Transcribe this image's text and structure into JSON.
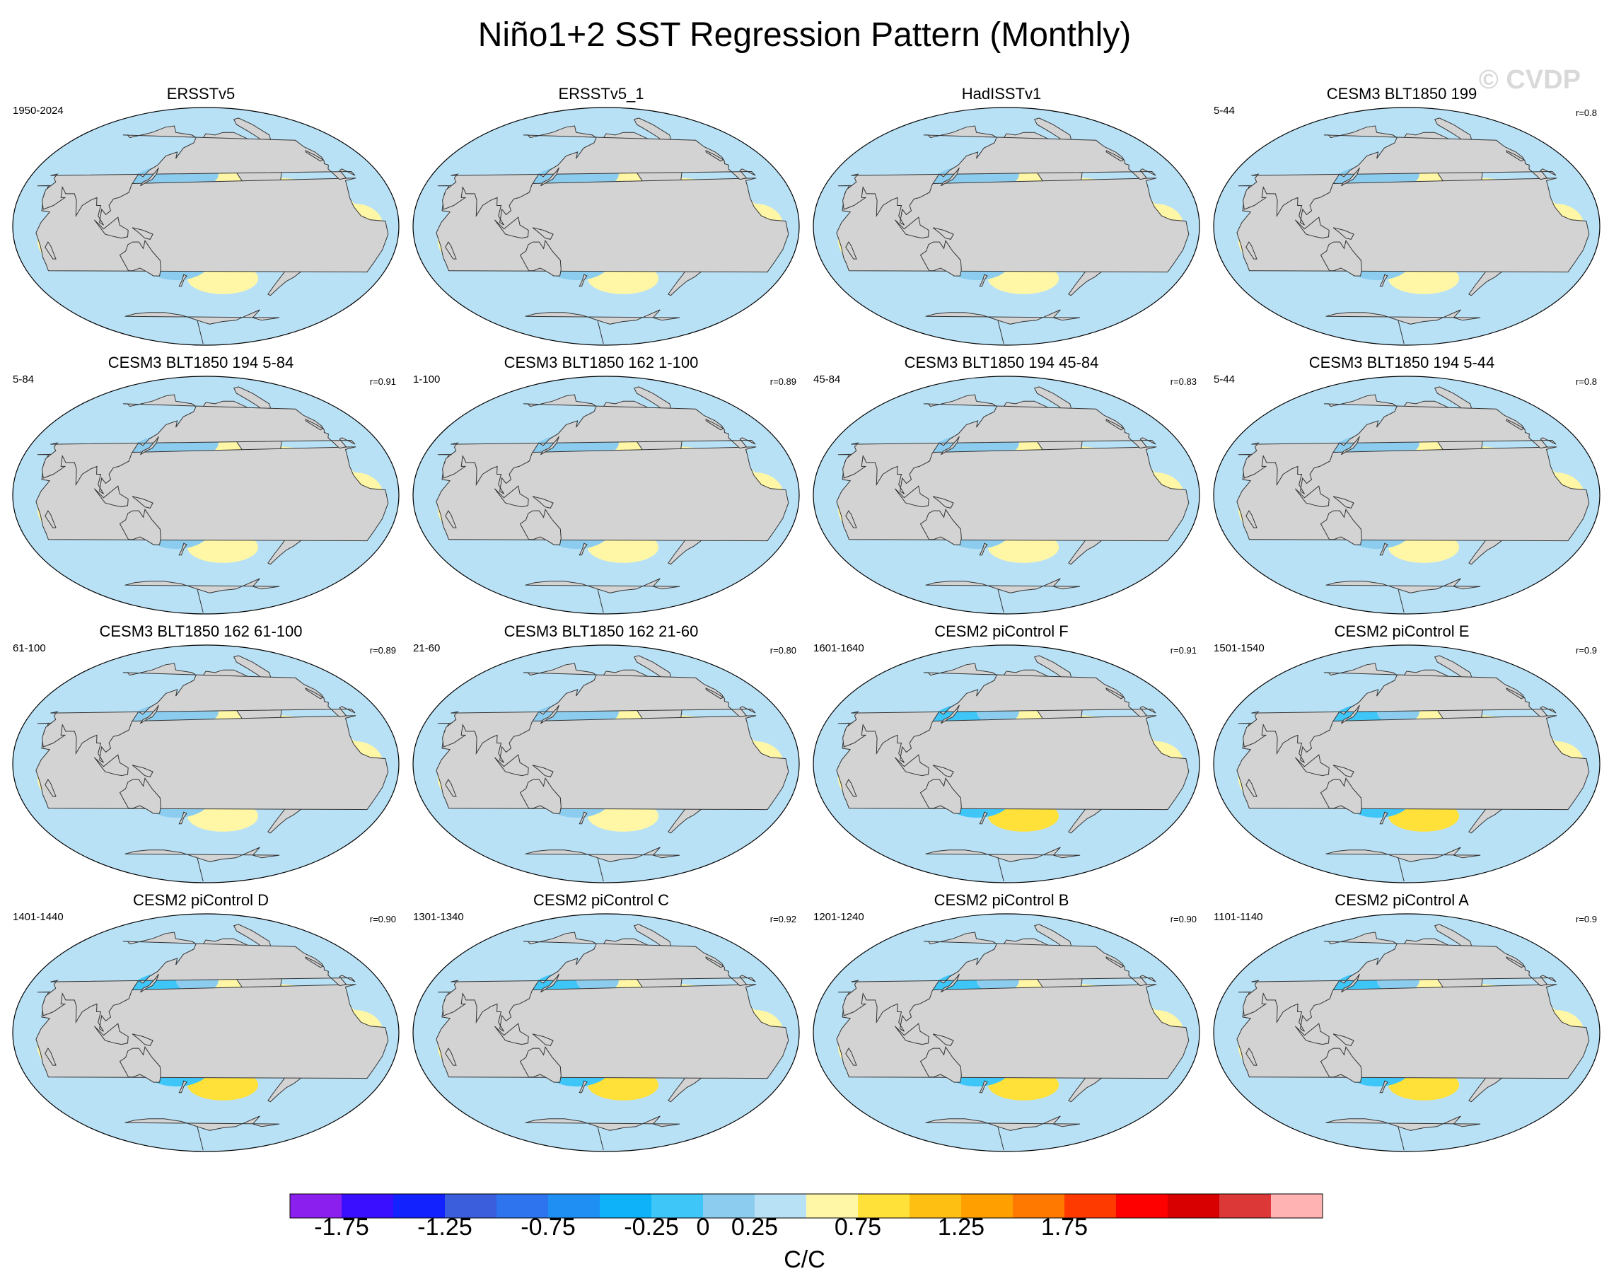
{
  "title": "Niño1+2 SST Regression Pattern (Monthly)",
  "watermark": "© CVDP",
  "colors": {
    "land": "#d3d3d3",
    "coast": "#333333",
    "ocean_neutral": "#b9e1f6",
    "palette": [
      "#8b20ee",
      "#3a0fff",
      "#1122ff",
      "#3a5edc",
      "#2f74ef",
      "#1f8ff4",
      "#0db2f8",
      "#3ec6f8",
      "#8ccdef",
      "#b9e1f6",
      "#fff7a6",
      "#ffe13a",
      "#ffbe12",
      "#ff9f00",
      "#ff7800",
      "#ff3a00",
      "#ff0000",
      "#d80000",
      "#dc3838",
      "#ffb3b3"
    ]
  },
  "chart_data": {
    "type": "heatmap",
    "description_units": "C/C",
    "colorbar": {
      "levels": [
        -2,
        -1.75,
        -1.5,
        -1.25,
        -1,
        -0.75,
        -0.5,
        -0.25,
        0,
        0.25,
        0.5,
        0.75,
        1,
        1.25,
        1.5,
        1.75,
        2
      ],
      "tick_labels": [
        "-1.75",
        "-1.25",
        "-0.75",
        "-0.25",
        "0",
        "0.25",
        "0.75",
        "1.25",
        "1.75"
      ],
      "units": "C/C"
    },
    "panels": [
      {
        "title": "ERSSTv5",
        "period": "1950-2024",
        "corr": "",
        "variant": 0
      },
      {
        "title": "ERSSTv5_1",
        "period": "",
        "corr": "",
        "variant": 1
      },
      {
        "title": "HadISSTv1",
        "period": "",
        "corr": "",
        "variant": 2
      },
      {
        "title": "CESM3 BLT1850 199",
        "period": "5-44",
        "corr": "r=0.8",
        "variant": 3
      },
      {
        "title": "CESM3 BLT1850 194 5-84",
        "period": "5-84",
        "corr": "r=0.91",
        "variant": 4
      },
      {
        "title": "CESM3 BLT1850 162 1-100",
        "period": "1-100",
        "corr": "r=0.89",
        "variant": 5
      },
      {
        "title": "CESM3 BLT1850 194 45-84",
        "period": "45-84",
        "corr": "r=0.83",
        "variant": 6
      },
      {
        "title": "CESM3 BLT1850 194 5-44",
        "period": "5-44",
        "corr": "r=0.8",
        "variant": 7
      },
      {
        "title": "CESM3 BLT1850 162 61-100",
        "period": "61-100",
        "corr": "r=0.89",
        "variant": 8
      },
      {
        "title": "CESM3 BLT1850 162 21-60",
        "period": "21-60",
        "corr": "r=0.80",
        "variant": 9
      },
      {
        "title": "CESM2 piControl F",
        "period": "1601-1640",
        "corr": "r=0.91",
        "variant": 10
      },
      {
        "title": "CESM2 piControl E",
        "period": "1501-1540",
        "corr": "r=0.9",
        "variant": 11
      },
      {
        "title": "CESM2 piControl D",
        "period": "1401-1440",
        "corr": "r=0.90",
        "variant": 12
      },
      {
        "title": "CESM2 piControl C",
        "period": "1301-1340",
        "corr": "r=0.92",
        "variant": 13
      },
      {
        "title": "CESM2 piControl B",
        "period": "1201-1240",
        "corr": "r=0.90",
        "variant": 14
      },
      {
        "title": "CESM2 piControl A",
        "period": "1101-1140",
        "corr": "r=0.9",
        "variant": 15
      }
    ]
  }
}
